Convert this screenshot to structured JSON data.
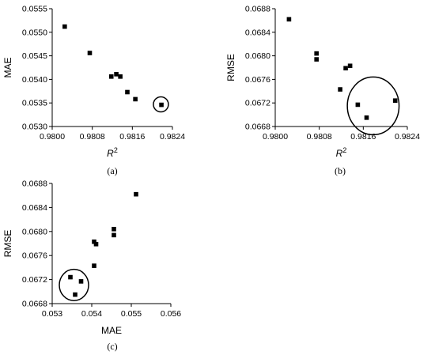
{
  "chart_data": [
    {
      "type": "scatter",
      "panel_label": "(a)",
      "xlabel": "R",
      "xlabel_sup": "2",
      "ylabel": "MAE",
      "xlim": [
        0.98,
        0.9824
      ],
      "ylim": [
        0.053,
        0.0555
      ],
      "x_ticks": [
        0.98,
        0.9808,
        0.9816,
        0.9824
      ],
      "x_tick_labels": [
        "0.9800",
        "0.9808",
        "0.9816",
        "0.9824"
      ],
      "y_ticks": [
        0.053,
        0.0535,
        0.054,
        0.0545,
        0.055,
        0.0555
      ],
      "y_tick_labels": [
        "0.0530",
        "0.0535",
        "0.0540",
        "0.0545",
        "0.0550",
        "0.0555"
      ],
      "points": [
        {
          "x": 0.98025,
          "y": 0.05512
        },
        {
          "x": 0.98075,
          "y": 0.05456
        },
        {
          "x": 0.98118,
          "y": 0.05406
        },
        {
          "x": 0.98128,
          "y": 0.05411
        },
        {
          "x": 0.98136,
          "y": 0.05406
        },
        {
          "x": 0.9815,
          "y": 0.05373
        },
        {
          "x": 0.98166,
          "y": 0.05358
        },
        {
          "x": 0.98218,
          "y": 0.05346
        }
      ],
      "highlight": {
        "x": 0.98217,
        "y": 0.05347,
        "rx": 0.00015,
        "ry": 0.00016
      }
    },
    {
      "type": "scatter",
      "panel_label": "(b)",
      "xlabel": "R",
      "xlabel_sup": "2",
      "ylabel": "RMSE",
      "xlim": [
        0.98,
        0.9824
      ],
      "ylim": [
        0.0668,
        0.0688
      ],
      "x_ticks": [
        0.98,
        0.9808,
        0.9816,
        0.9824
      ],
      "x_tick_labels": [
        "0.9800",
        "0.9808",
        "0.9816",
        "0.9824"
      ],
      "y_ticks": [
        0.0668,
        0.0672,
        0.0676,
        0.068,
        0.0684,
        0.0688
      ],
      "y_tick_labels": [
        "0.0668",
        "0.0672",
        "0.0676",
        "0.0680",
        "0.0684",
        "0.0688"
      ],
      "points": [
        {
          "x": 0.98025,
          "y": 0.06862
        },
        {
          "x": 0.98075,
          "y": 0.06804
        },
        {
          "x": 0.98075,
          "y": 0.06794
        },
        {
          "x": 0.98118,
          "y": 0.06743
        },
        {
          "x": 0.98128,
          "y": 0.06779
        },
        {
          "x": 0.98136,
          "y": 0.06783
        },
        {
          "x": 0.9815,
          "y": 0.06717
        },
        {
          "x": 0.98166,
          "y": 0.06695
        },
        {
          "x": 0.98218,
          "y": 0.06724
        }
      ],
      "highlight": {
        "x": 0.98178,
        "y": 0.06715,
        "rx": 0.00047,
        "ry": 0.00049
      }
    },
    {
      "type": "scatter",
      "panel_label": "(c)",
      "xlabel": "MAE",
      "ylabel": "RMSE",
      "xlim": [
        0.053,
        0.056
      ],
      "ylim": [
        0.0668,
        0.0688
      ],
      "x_ticks": [
        0.053,
        0.054,
        0.055,
        0.056
      ],
      "x_tick_labels": [
        "0.053",
        "0.054",
        "0.055",
        "0.056"
      ],
      "y_ticks": [
        0.0668,
        0.0672,
        0.0676,
        0.068,
        0.0684,
        0.0688
      ],
      "y_tick_labels": [
        "0.0668",
        "0.0672",
        "0.0676",
        "0.0680",
        "0.0684",
        "0.0688"
      ],
      "points": [
        {
          "x": 0.05512,
          "y": 0.06862
        },
        {
          "x": 0.05456,
          "y": 0.06804
        },
        {
          "x": 0.05456,
          "y": 0.06794
        },
        {
          "x": 0.05406,
          "y": 0.06743
        },
        {
          "x": 0.05406,
          "y": 0.06783
        },
        {
          "x": 0.05411,
          "y": 0.06779
        },
        {
          "x": 0.05373,
          "y": 0.06717
        },
        {
          "x": 0.05358,
          "y": 0.06695
        },
        {
          "x": 0.05346,
          "y": 0.06724
        }
      ],
      "highlight": {
        "x": 0.05355,
        "y": 0.06711,
        "rx": 0.00037,
        "ry": 0.00026
      }
    }
  ]
}
